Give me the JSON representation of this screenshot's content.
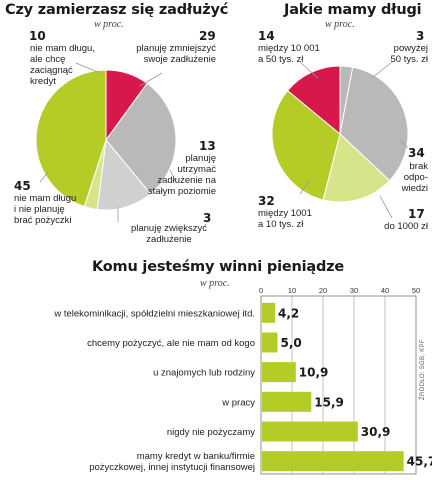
{
  "colors": {
    "lime": "#b5cc27",
    "light_lime": "#d8e48a",
    "red": "#d6184b",
    "gray": "#b9b9b9",
    "light_gray": "#d0d0d0",
    "leader": "#999999"
  },
  "chart_data": [
    {
      "type": "pie",
      "title": "Czy zamierzasz się zadłużyć",
      "subtitle": "w proc.",
      "slices": [
        {
          "label": "nie mam długu,\nale chcę\nzaciągnąć\nkredyt",
          "value": 10,
          "color": "#d6184b"
        },
        {
          "label": "planuję zmniejszyć\nswoje zadłużenie",
          "value": 29,
          "color": "#b9b9b9"
        },
        {
          "label": "planuję\nutrzymać\nzadłużenie na\nstałym poziomie",
          "value": 13,
          "color": "#d0d0d0"
        },
        {
          "label": "planuję zwiększyć\nzadłużenie",
          "value": 3,
          "color": "#d8e48a"
        },
        {
          "label": "nie mam długu\ni nie planuję\nbrać pożyczki",
          "value": 45,
          "color": "#b5cc27"
        }
      ]
    },
    {
      "type": "pie",
      "title": "Jakie mamy długi",
      "subtitle": "w proc.",
      "slices": [
        {
          "label": "powyżej\n50 tys. zł",
          "value": 3,
          "color": "#b9b9b9"
        },
        {
          "label": "brak\nodpo-\nwiedzi",
          "value": 34,
          "color": "#b9b9b9"
        },
        {
          "label": "do 1000 zł",
          "value": 17,
          "color": "#d8e48a"
        },
        {
          "label": "między 1001\na 10 tys. zł",
          "value": 32,
          "color": "#b5cc27"
        },
        {
          "label": "między 10 001\na 50 tys. zł",
          "value": 14,
          "color": "#d6184b"
        }
      ]
    },
    {
      "type": "bar",
      "orientation": "horizontal",
      "title": "Komu jesteśmy winni pieniądze",
      "subtitle": "w proc.",
      "categories": [
        "w telekominikacji, spółdzielni mieszkaniowej itd.",
        "chcemy pożyczyć, ale nie mam od kogo",
        "u znajomych lub rodziny",
        "w pracy",
        "nigdy nie pożyczamy",
        "mamy kredyt w banku/firmie\npożyczkowej, innej instytucji finansowej"
      ],
      "values": [
        4.2,
        5.0,
        10.9,
        15.9,
        30.9,
        45.7
      ],
      "value_labels": [
        "4,2",
        "5,0",
        "10,9",
        "15,9",
        "30,9",
        "45,7"
      ],
      "xlim": [
        0,
        50
      ],
      "xticks": [
        "0",
        "10",
        "20",
        "30",
        "40",
        "50"
      ],
      "grid": true,
      "color": "#b5cc27"
    }
  ],
  "source": "ŹRÓDŁO: SGB, KPF"
}
